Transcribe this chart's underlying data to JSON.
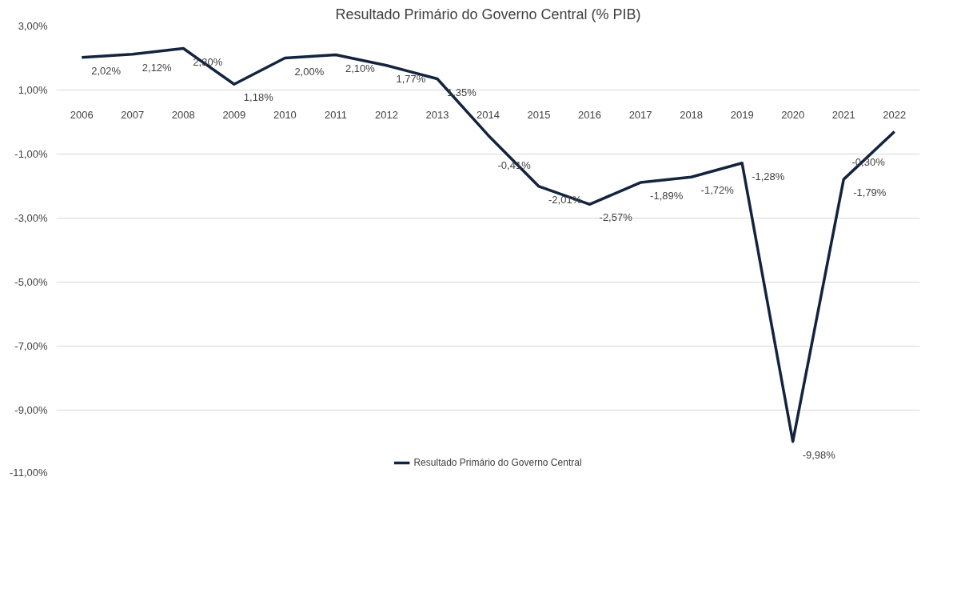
{
  "chart_data": {
    "type": "line",
    "title": "Resultado Primário do Governo Central (% PIB)",
    "categories": [
      "2006",
      "2007",
      "2008",
      "2009",
      "2010",
      "2011",
      "2012",
      "2013",
      "2014",
      "2015",
      "2016",
      "2017",
      "2018",
      "2019",
      "2020",
      "2021",
      "2022"
    ],
    "series": [
      {
        "name": "Resultado Primário do Governo Central",
        "color": "#14243f",
        "values": [
          2.02,
          2.12,
          2.3,
          1.18,
          2.0,
          2.1,
          1.77,
          1.35,
          -0.41,
          -2.01,
          -2.57,
          -1.89,
          -1.72,
          -1.28,
          -9.98,
          -1.79,
          -0.3
        ],
        "value_labels": [
          "2,02%",
          "2,12%",
          "2,30%",
          "1,18%",
          "2,00%",
          "2,10%",
          "1,77%",
          "1,35%",
          "-0,41%",
          "-2,01%",
          "-2,57%",
          "-1,89%",
          "-1,72%",
          "-1,28%",
          "-9,98%",
          "-1,79%",
          "-0,30%"
        ]
      }
    ],
    "ylim": [
      -11,
      3
    ],
    "yticks": [
      {
        "value": 3,
        "label": "3,00%"
      },
      {
        "value": 1,
        "label": "1,00%"
      },
      {
        "value": -1,
        "label": "-1,00%"
      },
      {
        "value": -3,
        "label": "-3,00%"
      },
      {
        "value": -5,
        "label": "-5,00%"
      },
      {
        "value": -7,
        "label": "-7,00%"
      },
      {
        "value": -9,
        "label": "-9,00%"
      },
      {
        "value": -11,
        "label": "-11,00%"
      }
    ],
    "grid": "y",
    "legend": "bottom",
    "marker": "none",
    "line_style": "solid"
  }
}
